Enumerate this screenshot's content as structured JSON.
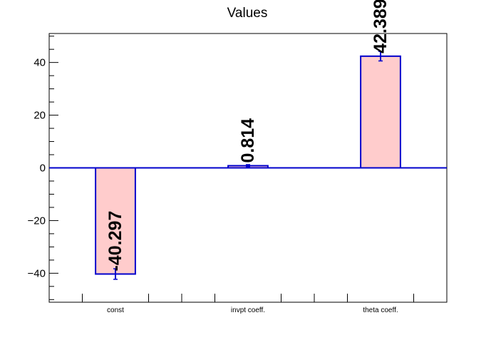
{
  "chart_data": {
    "type": "bar",
    "title": "Values",
    "xlabel": "",
    "ylabel": "",
    "categories": [
      "const",
      "invpt coeff.",
      "theta coeff."
    ],
    "values": [
      -40.297,
      0.814,
      42.389
    ],
    "errors": [
      2.0,
      0.4,
      1.8
    ],
    "value_labels": [
      "-40.297",
      "0.814",
      "42.389"
    ],
    "ylim": [
      -51.0,
      51.0
    ],
    "yticks": [
      -40,
      -20,
      0,
      20,
      40
    ],
    "ytick_labels": [
      "−40",
      "−20",
      "0",
      "20",
      "40"
    ],
    "grid": false,
    "legend": "none",
    "colors": {
      "bar_fill": "#ffcccc",
      "bar_edge": "#0000cc",
      "zero_line": "#0000cc",
      "error_bar": "#0000cc",
      "axis": "#000000",
      "text": "#000000"
    }
  }
}
